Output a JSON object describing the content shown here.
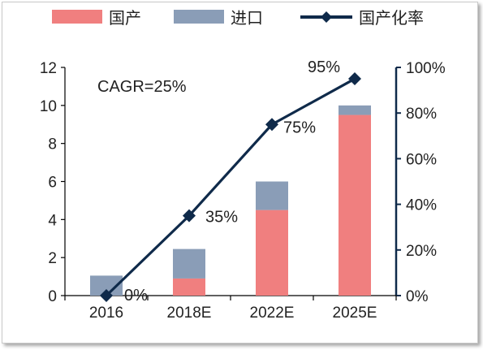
{
  "chart_data": {
    "type": "bar",
    "stacked": true,
    "categories": [
      "2016",
      "2018E",
      "2022E",
      "2025E"
    ],
    "series": [
      {
        "name": "国产",
        "axis": "left",
        "values": [
          0,
          0.9,
          4.5,
          9.5
        ],
        "color": "#f07f7f"
      },
      {
        "name": "进口",
        "axis": "left",
        "values": [
          1.05,
          1.55,
          1.5,
          0.5
        ],
        "color": "#8a9db7"
      }
    ],
    "line_series": {
      "name": "国产化率",
      "axis": "right",
      "type": "line",
      "values": [
        0,
        35,
        75,
        95
      ],
      "color": "#0f2a4a"
    },
    "y_left": {
      "min": 0,
      "max": 12,
      "ticks": [
        "0",
        "2",
        "4",
        "6",
        "8",
        "10",
        "12"
      ]
    },
    "y_right": {
      "min": 0,
      "max": 100,
      "ticks": [
        "0%",
        "20%",
        "40%",
        "60%",
        "80%",
        "100%"
      ]
    },
    "data_labels": [
      "0%",
      "35%",
      "75%",
      "95%"
    ],
    "annotation": "CAGR=25%",
    "legend": {
      "position": "top"
    }
  }
}
